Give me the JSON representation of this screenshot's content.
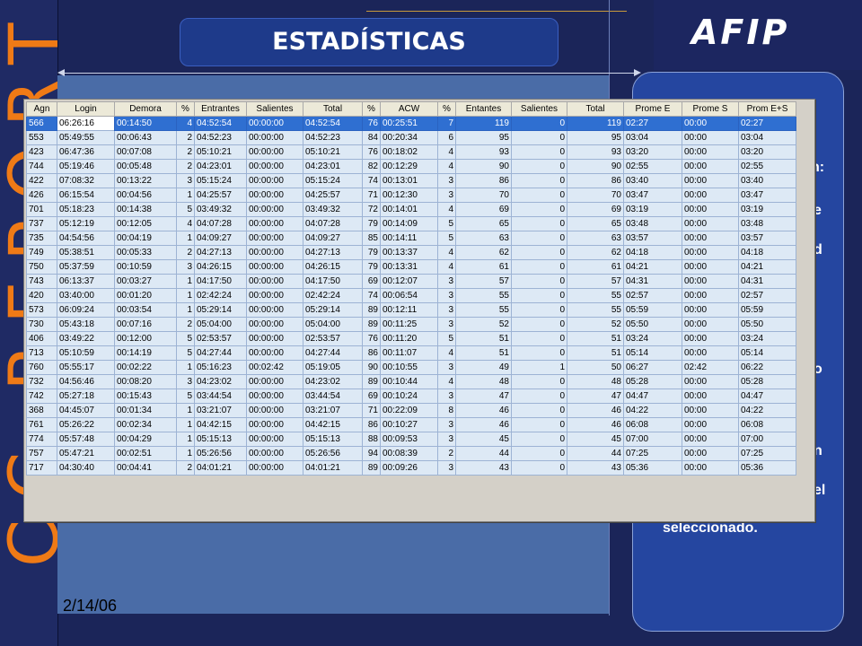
{
  "slide": {
    "title": "ESTADÍSTICAS",
    "date": "2/14/06",
    "vertical_text": "CC REPORT",
    "logo": "AFIP"
  },
  "side_panel": {
    "text_fragments": [
      "n:",
      "e",
      "d",
      "o",
      "n",
      "el"
    ],
    "main_text": "seleccionado."
  },
  "colors": {
    "background": "#1b2559",
    "accent_orange": "#ef7a16",
    "title_box": "#1e3a8a",
    "panel": "#4a6ca7",
    "right_panel": "#2546a0",
    "selected_row": "#2f6fd1",
    "row_background": "#dde9f5"
  },
  "table": {
    "columns": [
      "Agn",
      "Login",
      "Demora",
      "%",
      "Entrantes",
      "Salientes",
      "Total",
      "%",
      "ACW",
      "%",
      "Entantes",
      "Salientes",
      "Total",
      "Prome E",
      "Prome S",
      "Prom E+S"
    ],
    "selected_row": 0,
    "rows": [
      [
        "566",
        "06:26:16",
        "00:14:50",
        "4",
        "04:52:54",
        "00:00:00",
        "04:52:54",
        "76",
        "00:25:51",
        "7",
        "119",
        "0",
        "119",
        "02:27",
        "00:00",
        "02:27"
      ],
      [
        "553",
        "05:49:55",
        "00:06:43",
        "2",
        "04:52:23",
        "00:00:00",
        "04:52:23",
        "84",
        "00:20:34",
        "6",
        "95",
        "0",
        "95",
        "03:04",
        "00:00",
        "03:04"
      ],
      [
        "423",
        "06:47:36",
        "00:07:08",
        "2",
        "05:10:21",
        "00:00:00",
        "05:10:21",
        "76",
        "00:18:02",
        "4",
        "93",
        "0",
        "93",
        "03:20",
        "00:00",
        "03:20"
      ],
      [
        "744",
        "05:19:46",
        "00:05:48",
        "2",
        "04:23:01",
        "00:00:00",
        "04:23:01",
        "82",
        "00:12:29",
        "4",
        "90",
        "0",
        "90",
        "02:55",
        "00:00",
        "02:55"
      ],
      [
        "422",
        "07:08:32",
        "00:13:22",
        "3",
        "05:15:24",
        "00:00:00",
        "05:15:24",
        "74",
        "00:13:01",
        "3",
        "86",
        "0",
        "86",
        "03:40",
        "00:00",
        "03:40"
      ],
      [
        "426",
        "06:15:54",
        "00:04:56",
        "1",
        "04:25:57",
        "00:00:00",
        "04:25:57",
        "71",
        "00:12:30",
        "3",
        "70",
        "0",
        "70",
        "03:47",
        "00:00",
        "03:47"
      ],
      [
        "701",
        "05:18:23",
        "00:14:38",
        "5",
        "03:49:32",
        "00:00:00",
        "03:49:32",
        "72",
        "00:14:01",
        "4",
        "69",
        "0",
        "69",
        "03:19",
        "00:00",
        "03:19"
      ],
      [
        "737",
        "05:12:19",
        "00:12:05",
        "4",
        "04:07:28",
        "00:00:00",
        "04:07:28",
        "79",
        "00:14:09",
        "5",
        "65",
        "0",
        "65",
        "03:48",
        "00:00",
        "03:48"
      ],
      [
        "735",
        "04:54:56",
        "00:04:19",
        "1",
        "04:09:27",
        "00:00:00",
        "04:09:27",
        "85",
        "00:14:11",
        "5",
        "63",
        "0",
        "63",
        "03:57",
        "00:00",
        "03:57"
      ],
      [
        "749",
        "05:38:51",
        "00:05:33",
        "2",
        "04:27:13",
        "00:00:00",
        "04:27:13",
        "79",
        "00:13:37",
        "4",
        "62",
        "0",
        "62",
        "04:18",
        "00:00",
        "04:18"
      ],
      [
        "750",
        "05:37:59",
        "00:10:59",
        "3",
        "04:26:15",
        "00:00:00",
        "04:26:15",
        "79",
        "00:13:31",
        "4",
        "61",
        "0",
        "61",
        "04:21",
        "00:00",
        "04:21"
      ],
      [
        "743",
        "06:13:37",
        "00:03:27",
        "1",
        "04:17:50",
        "00:00:00",
        "04:17:50",
        "69",
        "00:12:07",
        "3",
        "57",
        "0",
        "57",
        "04:31",
        "00:00",
        "04:31"
      ],
      [
        "420",
        "03:40:00",
        "00:01:20",
        "1",
        "02:42:24",
        "00:00:00",
        "02:42:24",
        "74",
        "00:06:54",
        "3",
        "55",
        "0",
        "55",
        "02:57",
        "00:00",
        "02:57"
      ],
      [
        "573",
        "06:09:24",
        "00:03:54",
        "1",
        "05:29:14",
        "00:00:00",
        "05:29:14",
        "89",
        "00:12:11",
        "3",
        "55",
        "0",
        "55",
        "05:59",
        "00:00",
        "05:59"
      ],
      [
        "730",
        "05:43:18",
        "00:07:16",
        "2",
        "05:04:00",
        "00:00:00",
        "05:04:00",
        "89",
        "00:11:25",
        "3",
        "52",
        "0",
        "52",
        "05:50",
        "00:00",
        "05:50"
      ],
      [
        "406",
        "03:49:22",
        "00:12:00",
        "5",
        "02:53:57",
        "00:00:00",
        "02:53:57",
        "76",
        "00:11:20",
        "5",
        "51",
        "0",
        "51",
        "03:24",
        "00:00",
        "03:24"
      ],
      [
        "713",
        "05:10:59",
        "00:14:19",
        "5",
        "04:27:44",
        "00:00:00",
        "04:27:44",
        "86",
        "00:11:07",
        "4",
        "51",
        "0",
        "51",
        "05:14",
        "00:00",
        "05:14"
      ],
      [
        "760",
        "05:55:17",
        "00:02:22",
        "1",
        "05:16:23",
        "00:02:42",
        "05:19:05",
        "90",
        "00:10:55",
        "3",
        "49",
        "1",
        "50",
        "06:27",
        "02:42",
        "06:22"
      ],
      [
        "732",
        "04:56:46",
        "00:08:20",
        "3",
        "04:23:02",
        "00:00:00",
        "04:23:02",
        "89",
        "00:10:44",
        "4",
        "48",
        "0",
        "48",
        "05:28",
        "00:00",
        "05:28"
      ],
      [
        "742",
        "05:27:18",
        "00:15:43",
        "5",
        "03:44:54",
        "00:00:00",
        "03:44:54",
        "69",
        "00:10:24",
        "3",
        "47",
        "0",
        "47",
        "04:47",
        "00:00",
        "04:47"
      ],
      [
        "368",
        "04:45:07",
        "00:01:34",
        "1",
        "03:21:07",
        "00:00:00",
        "03:21:07",
        "71",
        "00:22:09",
        "8",
        "46",
        "0",
        "46",
        "04:22",
        "00:00",
        "04:22"
      ],
      [
        "761",
        "05:26:22",
        "00:02:34",
        "1",
        "04:42:15",
        "00:00:00",
        "04:42:15",
        "86",
        "00:10:27",
        "3",
        "46",
        "0",
        "46",
        "06:08",
        "00:00",
        "06:08"
      ],
      [
        "774",
        "05:57:48",
        "00:04:29",
        "1",
        "05:15:13",
        "00:00:00",
        "05:15:13",
        "88",
        "00:09:53",
        "3",
        "45",
        "0",
        "45",
        "07:00",
        "00:00",
        "07:00"
      ],
      [
        "757",
        "05:47:21",
        "00:02:51",
        "1",
        "05:26:56",
        "00:00:00",
        "05:26:56",
        "94",
        "00:08:39",
        "2",
        "44",
        "0",
        "44",
        "07:25",
        "00:00",
        "07:25"
      ],
      [
        "717",
        "04:30:40",
        "00:04:41",
        "2",
        "04:01:21",
        "00:00:00",
        "04:01:21",
        "89",
        "00:09:26",
        "3",
        "43",
        "0",
        "43",
        "05:36",
        "00:00",
        "05:36"
      ]
    ]
  }
}
